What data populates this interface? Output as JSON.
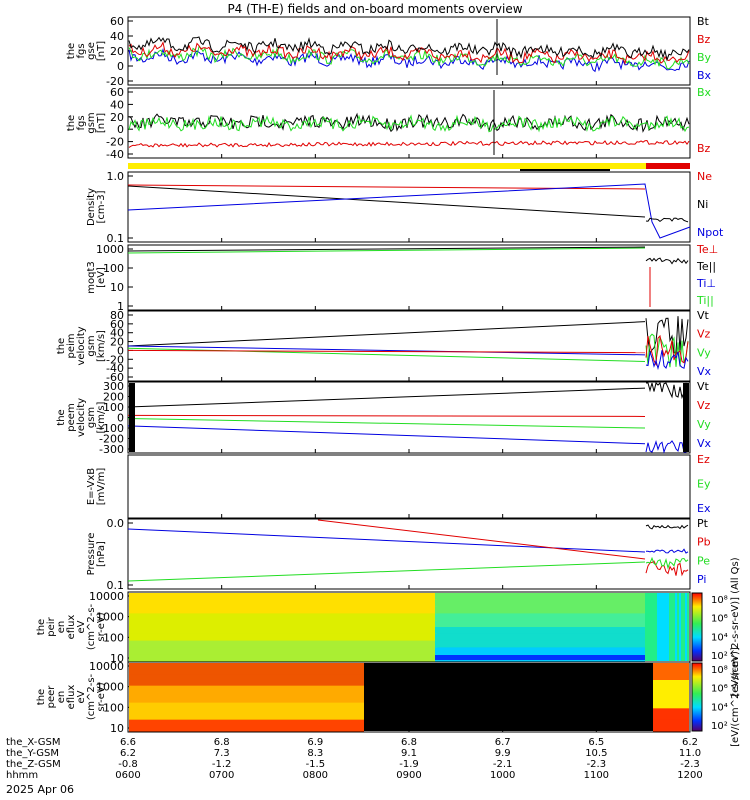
{
  "title": "P4 (TH-E) fields and on-board moments overview",
  "colors": {
    "black": "#000000",
    "red": "#e00000",
    "green": "#22dd22",
    "blue": "#0000e0",
    "cyan": "#00e5e5",
    "yellow": "#ffee00"
  },
  "chart_data": [
    {
      "type": "line",
      "ylabel_lines": [
        "the",
        "fgs",
        "gse",
        "[nT]"
      ],
      "ylim": [
        -20,
        60
      ],
      "yticks": [
        "60",
        "40",
        "20",
        "0",
        "-20"
      ],
      "series": [
        {
          "name": "Bt",
          "color": "#000000",
          "level": 33
        },
        {
          "name": "Bz",
          "color": "#e00000",
          "level": 22
        },
        {
          "name": "By",
          "color": "#22dd22",
          "level": 16
        },
        {
          "name": "Bx",
          "color": "#0000e0",
          "level": 12
        }
      ]
    },
    {
      "type": "line",
      "ylabel_lines": [
        "the",
        "fgs",
        "gsm",
        "[nT]"
      ],
      "ylim": [
        -50,
        60
      ],
      "yticks": [
        "60",
        "40",
        "20",
        "0",
        "-20",
        "-40"
      ],
      "series": [
        {
          "name": "Bx",
          "color": "#22dd22",
          "level": 5
        },
        {
          "name": "Bz",
          "color": "#e00000",
          "level": -35
        }
      ]
    },
    {
      "type": "line",
      "ylabel_lines": [
        "Density",
        "[cm-3]"
      ],
      "yscale": "log",
      "yticks": [
        "1.0",
        "0.1"
      ],
      "series": [
        {
          "name": "Ne",
          "color": "#e00000"
        },
        {
          "name": "Ni",
          "color": "#000000"
        },
        {
          "name": "Npot",
          "color": "#0000e0"
        }
      ]
    },
    {
      "type": "line",
      "ylabel_lines": [
        "moqt3",
        "[eV]"
      ],
      "yscale": "log",
      "yticks": [
        "1000",
        "100",
        "10",
        "1"
      ],
      "series": [
        {
          "name": "Te⊥",
          "color": "#e00000"
        },
        {
          "name": "Te||",
          "color": "#000000"
        },
        {
          "name": "Ti⊥",
          "color": "#0000e0"
        },
        {
          "name": "Ti||",
          "color": "#22dd22"
        }
      ]
    },
    {
      "type": "line",
      "ylabel_lines": [
        "the",
        "peim",
        "velocity",
        "gsm",
        "[km/s]"
      ],
      "ylim": [
        -60,
        80
      ],
      "yticks": [
        "80",
        "60",
        "40",
        "20",
        "0",
        "-20",
        "-40",
        "-60"
      ],
      "series": [
        {
          "name": "Vt",
          "color": "#000000"
        },
        {
          "name": "Vz",
          "color": "#e00000"
        },
        {
          "name": "Vy",
          "color": "#22dd22"
        },
        {
          "name": "Vx",
          "color": "#0000e0"
        }
      ]
    },
    {
      "type": "line",
      "ylabel_lines": [
        "the",
        "peem",
        "velocity",
        "gsm",
        "[km/s]"
      ],
      "ylim": [
        -300,
        300
      ],
      "yticks": [
        "300",
        "200",
        "100",
        "0",
        "-100",
        "-200",
        "-300"
      ],
      "series": [
        {
          "name": "Vt",
          "color": "#000000"
        },
        {
          "name": "Vz",
          "color": "#e00000"
        },
        {
          "name": "Vy",
          "color": "#22dd22"
        },
        {
          "name": "Vx",
          "color": "#0000e0"
        }
      ]
    },
    {
      "type": "line",
      "ylabel_lines": [
        "E=-VxB",
        "[mV/m]"
      ],
      "yticks": [],
      "series": [
        {
          "name": "Ez",
          "color": "#e00000"
        },
        {
          "name": "Ey",
          "color": "#22dd22"
        },
        {
          "name": "Ex",
          "color": "#0000e0"
        }
      ]
    },
    {
      "type": "line",
      "ylabel_lines": [
        "Pressure",
        "[nPa]"
      ],
      "yscale": "log",
      "yticks": [
        "0.0",
        "0.1"
      ],
      "series": [
        {
          "name": "Pt",
          "color": "#000000"
        },
        {
          "name": "Pb",
          "color": "#e00000"
        },
        {
          "name": "Pe",
          "color": "#22dd22"
        },
        {
          "name": "Pi",
          "color": "#0000e0"
        }
      ]
    },
    {
      "type": "heatmap",
      "ylabel_lines": [
        "the",
        "peir",
        "en",
        "eflux",
        "eV",
        "(cm^2-s-",
        "sr-eV)"
      ],
      "yticks": [
        "10000",
        "1000",
        "100",
        "10"
      ]
    },
    {
      "type": "heatmap",
      "ylabel_lines": [
        "the",
        "peer",
        "en",
        "eflux",
        "eV",
        "(cm^2-s-",
        "sr-eV)"
      ],
      "yticks": [
        "10000",
        "1000",
        "100",
        "10"
      ]
    }
  ],
  "colorbar_top": {
    "label": "[eV/(cm^2-s-sr-eV)] (All Qs)",
    "ticks": [
      "10⁸",
      "10⁶",
      "10⁴",
      "10²"
    ]
  },
  "colorbar_bottom": {
    "label": "[eV/(cm^2-s-sr-eV)]",
    "ticks": [
      "10⁸",
      "10⁶",
      "10⁴",
      "10²"
    ]
  },
  "xaxis": {
    "rows": [
      {
        "label": "the_X-GSM",
        "values": [
          "6.6",
          "6.8",
          "6.9",
          "6.8",
          "6.7",
          "6.5",
          "6.2"
        ]
      },
      {
        "label": "the_Y-GSM",
        "values": [
          "6.2",
          "7.3",
          "8.3",
          "9.1",
          "9.9",
          "10.5",
          "11.0"
        ]
      },
      {
        "label": "the_Z-GSM",
        "values": [
          "-0.8",
          "-1.2",
          "-1.5",
          "-1.9",
          "-2.1",
          "-2.3",
          "-2.3"
        ]
      },
      {
        "label": "hhmm",
        "values": [
          "0600",
          "0700",
          "0800",
          "0900",
          "1000",
          "1100",
          "1200"
        ]
      }
    ],
    "date": "2025 Apr 06"
  }
}
